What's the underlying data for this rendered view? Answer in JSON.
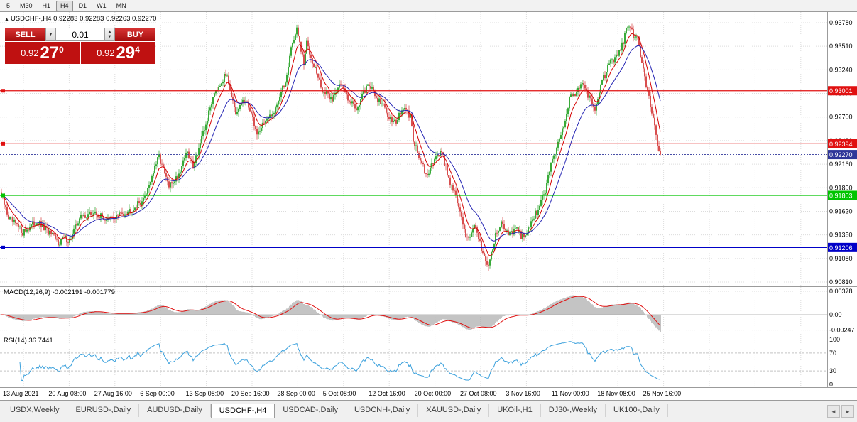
{
  "toolbar": {
    "timeframes": [
      {
        "label": "5",
        "active": false
      },
      {
        "label": "M30",
        "active": false
      },
      {
        "label": "H1",
        "active": false
      },
      {
        "label": "H4",
        "active": true
      },
      {
        "label": "D1",
        "active": false
      },
      {
        "label": "W1",
        "active": false
      },
      {
        "label": "MN",
        "active": false
      }
    ]
  },
  "chart_header": {
    "up_arrow": "▲",
    "text": "USDCHF-,H4 0.92283 0.92283 0.92263 0.92270"
  },
  "trade_panel": {
    "sell_label": "SELL",
    "buy_label": "BUY",
    "volume": "0.01",
    "dropdown_icon": "▼",
    "spin_up_icon": "▲",
    "spin_down_icon": "▼",
    "sell_price": {
      "prefix": "0.92",
      "big": "27",
      "sup": "0"
    },
    "buy_price": {
      "prefix": "0.92",
      "big": "29",
      "sup": "4"
    }
  },
  "chart_data": {
    "type": "candlestick",
    "symbol": "USDCHF-",
    "timeframe": "H4",
    "ohlc_current": {
      "open": "0.92283",
      "high": "0.92283",
      "low": "0.92263",
      "close": "0.92270"
    },
    "price_axis": [
      "0.93780",
      "0.93510",
      "0.93240",
      "0.92970",
      "0.92700",
      "0.92430",
      "0.92160",
      "0.91890",
      "0.91620",
      "0.91350",
      "0.91080",
      "0.90810"
    ],
    "time_axis": [
      "13 Aug 2021",
      "20 Aug 08:00",
      "27 Aug 16:00",
      "6 Sep 00:00",
      "13 Sep 08:00",
      "20 Sep 16:00",
      "28 Sep 00:00",
      "5 Oct 08:00",
      "12 Oct 16:00",
      "20 Oct 00:00",
      "27 Oct 08:00",
      "3 Nov 16:00",
      "11 Nov 00:00",
      "18 Nov 08:00",
      "25 Nov 16:00"
    ],
    "levels": [
      {
        "price": 0.93001,
        "label": "0.93001",
        "color": "#e01010"
      },
      {
        "price": 0.92394,
        "label": "0.92394",
        "color": "#e01010"
      },
      {
        "price": 0.91803,
        "label": "0.91803",
        "color": "#00c400"
      },
      {
        "price": 0.91206,
        "label": "0.91206",
        "color": "#0000c8"
      }
    ],
    "current_price": {
      "value": 0.9227,
      "label": "0.92270",
      "color": "#2f3699"
    },
    "up_color": "#23a123",
    "down_color": "#d43c3c",
    "ma_fast_color": "#d40000",
    "ma_slow_color": "#2525b4",
    "candle_count": 465,
    "close_waypoints": [
      [
        0,
        0.918
      ],
      [
        5,
        0.9155
      ],
      [
        15,
        0.9138
      ],
      [
        25,
        0.915
      ],
      [
        35,
        0.9135
      ],
      [
        40,
        0.9126
      ],
      [
        44,
        0.9132
      ],
      [
        48,
        0.9128
      ],
      [
        55,
        0.9155
      ],
      [
        65,
        0.916
      ],
      [
        75,
        0.9152
      ],
      [
        92,
        0.9165
      ],
      [
        100,
        0.9175
      ],
      [
        111,
        0.9225
      ],
      [
        118,
        0.919
      ],
      [
        125,
        0.9205
      ],
      [
        130,
        0.923
      ],
      [
        135,
        0.9215
      ],
      [
        143,
        0.9255
      ],
      [
        150,
        0.93
      ],
      [
        159,
        0.932
      ],
      [
        165,
        0.927
      ],
      [
        170,
        0.929
      ],
      [
        175,
        0.928
      ],
      [
        180,
        0.925
      ],
      [
        185,
        0.9265
      ],
      [
        190,
        0.927
      ],
      [
        195,
        0.929
      ],
      [
        200,
        0.931
      ],
      [
        204,
        0.935
      ],
      [
        208,
        0.937
      ],
      [
        213,
        0.933
      ],
      [
        215,
        0.9355
      ],
      [
        220,
        0.933
      ],
      [
        226,
        0.93
      ],
      [
        233,
        0.929
      ],
      [
        238,
        0.931
      ],
      [
        243,
        0.9295
      ],
      [
        250,
        0.928
      ],
      [
        256,
        0.93
      ],
      [
        258,
        0.931
      ],
      [
        263,
        0.9295
      ],
      [
        268,
        0.9285
      ],
      [
        273,
        0.927
      ],
      [
        278,
        0.9265
      ],
      [
        283,
        0.928
      ],
      [
        288,
        0.927
      ],
      [
        290,
        0.9245
      ],
      [
        295,
        0.922
      ],
      [
        300,
        0.92
      ],
      [
        305,
        0.9225
      ],
      [
        310,
        0.923
      ],
      [
        315,
        0.92
      ],
      [
        320,
        0.918
      ],
      [
        322,
        0.9165
      ],
      [
        328,
        0.913
      ],
      [
        333,
        0.9145
      ],
      [
        338,
        0.912
      ],
      [
        343,
        0.91
      ],
      [
        348,
        0.9135
      ],
      [
        353,
        0.915
      ],
      [
        354,
        0.9145
      ],
      [
        358,
        0.9135
      ],
      [
        363,
        0.914
      ],
      [
        368,
        0.913
      ],
      [
        373,
        0.915
      ],
      [
        378,
        0.9165
      ],
      [
        383,
        0.9185
      ],
      [
        386,
        0.921
      ],
      [
        390,
        0.923
      ],
      [
        395,
        0.9255
      ],
      [
        400,
        0.929
      ],
      [
        405,
        0.93
      ],
      [
        409,
        0.931
      ],
      [
        413,
        0.9295
      ],
      [
        418,
        0.928
      ],
      [
        423,
        0.931
      ],
      [
        428,
        0.933
      ],
      [
        433,
        0.934
      ],
      [
        438,
        0.9355
      ],
      [
        440,
        0.937
      ],
      [
        443,
        0.9375
      ],
      [
        445,
        0.936
      ],
      [
        448,
        0.9365
      ],
      [
        450,
        0.934
      ],
      [
        455,
        0.93
      ],
      [
        459,
        0.927
      ],
      [
        462,
        0.924
      ],
      [
        464,
        0.9227
      ]
    ],
    "indicators": {
      "macd": {
        "label": "MACD(12,26,9) -0.002191 -0.001779",
        "axis": [
          "0.00378",
          "0.00",
          "-0.00247"
        ],
        "hist_color": "#ababab",
        "signal_color": "#e01010"
      },
      "rsi": {
        "label": "RSI(14) 36.7441",
        "axis": [
          "100",
          "70",
          "30",
          "0"
        ],
        "levels": [
          70,
          30
        ],
        "line_color": "#3aa0dc"
      }
    }
  },
  "tabbar": {
    "left_arrow": "◄",
    "right_arrow": "►",
    "tabs": [
      {
        "label": "USDX,Weekly",
        "active": false
      },
      {
        "label": "EURUSD-,Daily",
        "active": false
      },
      {
        "label": "AUDUSD-,Daily",
        "active": false
      },
      {
        "label": "USDCHF-,H4",
        "active": true
      },
      {
        "label": "USDCAD-,Daily",
        "active": false
      },
      {
        "label": "USDCNH-,Daily",
        "active": false
      },
      {
        "label": "XAUUSD-,Daily",
        "active": false
      },
      {
        "label": "UKOil-,H1",
        "active": false
      },
      {
        "label": "DJ30-,Weekly",
        "active": false
      },
      {
        "label": "UK100-,Daily",
        "active": false
      }
    ]
  }
}
